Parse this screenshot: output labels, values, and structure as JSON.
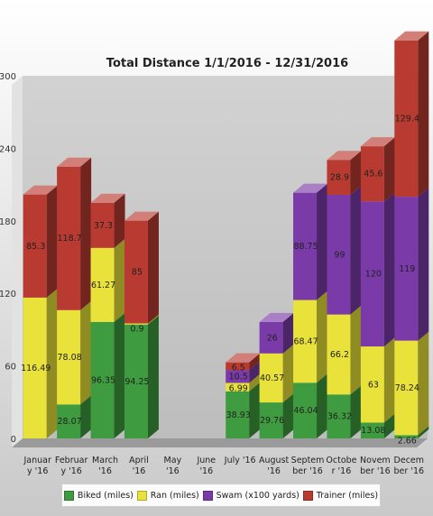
{
  "chart_data": {
    "type": "bar",
    "stacked": true,
    "style": "3d",
    "title": "Total Distance 1/1/2016 - 12/31/2016",
    "xlabel": "",
    "ylabel": "",
    "ylim": [
      0,
      300
    ],
    "yticks": [
      "0",
      "60",
      "120",
      "180",
      "240",
      "300"
    ],
    "grid": false,
    "legend_position": "bottom",
    "categories": [
      [
        "Januar",
        "y '16"
      ],
      [
        "Februar",
        "y '16"
      ],
      [
        "March",
        "'16"
      ],
      [
        "April",
        "'16"
      ],
      [
        "May",
        "'16"
      ],
      [
        "June",
        "'16"
      ],
      [
        "July '16"
      ],
      [
        "August",
        "'16"
      ],
      [
        "Septem",
        "ber '16"
      ],
      [
        "Octobe",
        "r '16"
      ],
      [
        "Novem",
        "ber '16"
      ],
      [
        "Decem",
        "ber '16"
      ]
    ],
    "series": [
      {
        "name": "Biked (miles)",
        "color": "#3f9b3f",
        "values": [
          0,
          28.07,
          96.35,
          94.25,
          0,
          0,
          38.93,
          29.76,
          46.04,
          36.32,
          13.08,
          2.66
        ],
        "labels": [
          "",
          "28.07",
          "96.35",
          "94.25",
          "",
          "",
          "38.93",
          "29.76",
          "46.04",
          "36.32",
          "13.08",
          "2.66"
        ]
      },
      {
        "name": "Ran (miles)",
        "color": "#e8e23a",
        "values": [
          116.49,
          78.08,
          61.27,
          0.9,
          0,
          0,
          6.99,
          40.57,
          68.47,
          66.2,
          63,
          78.24
        ],
        "labels": [
          "116.49",
          "78.08",
          "61.27",
          "0.9",
          "",
          "",
          "6.99",
          "40.57",
          "68.47",
          "66.2",
          "63",
          "78.24"
        ]
      },
      {
        "name": "Swam (x100 yards)",
        "color": "#7a3aa8",
        "values": [
          0,
          0,
          0,
          0,
          0,
          0,
          10.5,
          26,
          88.75,
          99,
          120,
          119
        ],
        "labels": [
          "",
          "",
          "",
          "",
          "",
          "",
          "10.5",
          "26",
          "88.75",
          "99",
          "120",
          "119"
        ]
      },
      {
        "name": "Trainer (miles)",
        "color": "#b83a30",
        "values": [
          85.3,
          118.7,
          37.3,
          85,
          0,
          0,
          6.5,
          0,
          0,
          28.9,
          45.6,
          129.4
        ],
        "labels": [
          "85.3",
          "118.7",
          "37.3",
          "85",
          "",
          "",
          "6.5",
          "",
          "",
          "28.9",
          "45.6",
          "129.4"
        ]
      }
    ]
  },
  "legend": {
    "items": [
      {
        "label": "Biked (miles)",
        "color": "#3f9b3f"
      },
      {
        "label": "Ran (miles)",
        "color": "#e8e23a"
      },
      {
        "label": "Swam (x100 yards)",
        "color": "#7a3aa8"
      },
      {
        "label": "Trainer (miles)",
        "color": "#b83a30"
      }
    ]
  }
}
